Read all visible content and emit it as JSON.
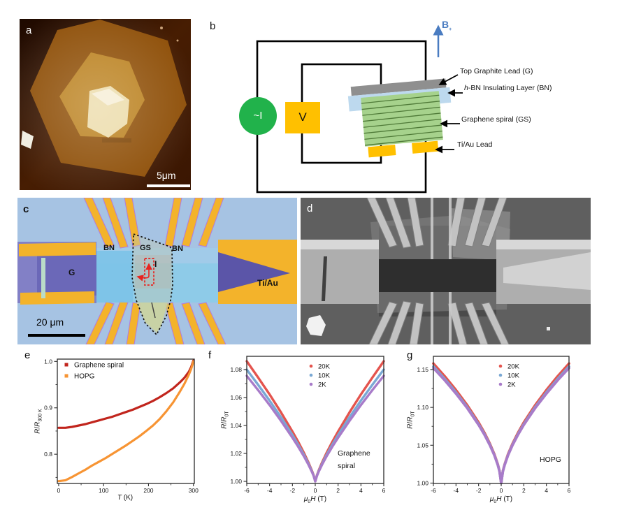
{
  "figure": {
    "panels": {
      "a": {
        "label": "a",
        "scalebar_text": "5μm",
        "colors": {
          "background": "#3c1500",
          "flake_outer": "#8f5009",
          "flake_mid": "#bc8322",
          "flake_core": "#ecdcab",
          "flake_core_highlight": "#f6eed6",
          "speck": "#f0ede0",
          "scalebar": "#ffffff"
        }
      },
      "b": {
        "label": "b",
        "current_source_label": "~I",
        "voltmeter_label": "V",
        "field_label_main": "B",
        "field_label_sub": "+",
        "ann_top_graphite": "Top Graphite Lead (G)",
        "ann_hbn_prefix": "h",
        "ann_hbn_rest": "-BN Insulating Layer (BN)",
        "ann_spiral": "Graphene spiral (GS)",
        "ann_tiau": "Ti/Au Lead",
        "colors": {
          "source_green": "#21b24b",
          "meter_gold": "#ffc000",
          "graphite_gray": "#8f8f8f",
          "hbn_blue": "#bdd9ee",
          "spiral_green": "#a6d28c",
          "spiral_line": "#4f7a38",
          "tiau_gold": "#ffc000",
          "wire_black": "#000000",
          "field_blue": "#4a7cc1"
        }
      },
      "c": {
        "label": "c",
        "scalebar_text": "20 μm",
        "bn_left": "BN",
        "gs": "GS",
        "bn_right": "BN",
        "g": "G",
        "current": "I",
        "tiau": "Ti/Au",
        "colors": {
          "background": "#a6c3e3",
          "bn_strip": "#8ecbe8",
          "bn_strip_top": "#a5cbe9",
          "gold": "#f3b32b",
          "graphite_purple": "#8280c6",
          "graphite_dark": "#6b68b8",
          "wedge_purple": "#5b55a8",
          "flake_green": "#cdd49e",
          "marker_red": "#e8231f",
          "scalebar": "#000000"
        }
      },
      "d": {
        "label": "d",
        "colors": {
          "background": "#5f5f5f",
          "pad": "#aeaeae",
          "pad_highlight": "#d8d8d8",
          "dark_band": "#2e2e2e",
          "finger": "#c2c2c2",
          "patch": "#8a8a8a",
          "speck": "#f2f2f2"
        }
      }
    }
  },
  "chart_data": [
    {
      "id": "chart-e",
      "type": "scatter",
      "panel_label": "e",
      "xlabel": {
        "main": "T",
        "unit": " (K)"
      },
      "ylabel": {
        "num": "R",
        "slash": "/",
        "den": "R",
        "sub": "300 K"
      },
      "xlim": [
        -3,
        302
      ],
      "ylim": [
        0.737,
        1.005
      ],
      "xticks": {
        "values": [
          0,
          100,
          200,
          300
        ],
        "labels": [
          "0",
          "100",
          "200",
          "300"
        ]
      },
      "yticks": {
        "values": [
          0.8,
          0.9,
          1.0
        ],
        "labels": [
          "0.8",
          "0.9",
          "1.0"
        ]
      },
      "xminor": [
        50,
        150,
        250
      ],
      "yminor": [
        0.75,
        0.85,
        0.95
      ],
      "grid": false,
      "legend": {
        "position": "top-left",
        "items": [
          {
            "label": "Graphene spiral",
            "color": "#c1251d",
            "marker": "square"
          },
          {
            "label": "HOPG",
            "color": "#f79433",
            "marker": "square"
          }
        ]
      },
      "series": [
        {
          "name": "Graphene spiral",
          "color": "#c1251d",
          "x": [
            0,
            15,
            30,
            45,
            60,
            75,
            90,
            105,
            120,
            135,
            150,
            165,
            180,
            195,
            210,
            225,
            240,
            255,
            270,
            280,
            290,
            295,
            300
          ],
          "y": [
            0.857,
            0.857,
            0.859,
            0.862,
            0.865,
            0.869,
            0.873,
            0.877,
            0.881,
            0.886,
            0.891,
            0.896,
            0.902,
            0.908,
            0.915,
            0.923,
            0.932,
            0.942,
            0.955,
            0.965,
            0.978,
            0.988,
            1.002
          ]
        },
        {
          "name": "HOPG",
          "color": "#f79433",
          "x": [
            0,
            15,
            30,
            45,
            60,
            75,
            90,
            105,
            120,
            135,
            150,
            165,
            180,
            195,
            210,
            225,
            240,
            255,
            270,
            280,
            290,
            295,
            300
          ],
          "y": [
            0.742,
            0.744,
            0.751,
            0.759,
            0.767,
            0.776,
            0.784,
            0.792,
            0.801,
            0.81,
            0.819,
            0.829,
            0.839,
            0.85,
            0.862,
            0.876,
            0.893,
            0.912,
            0.935,
            0.952,
            0.972,
            0.984,
            1.0
          ]
        }
      ]
    },
    {
      "id": "chart-f",
      "type": "scatter",
      "panel_label": "f",
      "xlabel": {
        "mu": "μ",
        "sub": "0",
        "main": "H",
        "unit": " (T)"
      },
      "ylabel": {
        "num": "R",
        "slash": "/",
        "den": "R",
        "sub": "0T"
      },
      "xlim": [
        -6,
        6
      ],
      "ylim": [
        0.9985,
        1.0895
      ],
      "xticks": {
        "values": [
          -6,
          -4,
          -2,
          0,
          2,
          4,
          6
        ],
        "labels": [
          "-6",
          "-4",
          "-2",
          "0",
          "2",
          "4",
          "6"
        ]
      },
      "yticks": {
        "values": [
          1.0,
          1.02,
          1.04,
          1.06,
          1.08
        ],
        "labels": [
          "1.00",
          "1.02",
          "1.04",
          "1.06",
          "1.08"
        ]
      },
      "xminor": [
        -5,
        -3,
        -1,
        1,
        3,
        5
      ],
      "yminor": [
        1.01,
        1.03,
        1.05,
        1.07
      ],
      "grid": false,
      "annotation": {
        "lines": [
          "Graphene",
          "spiral"
        ]
      },
      "legend": {
        "position": "top-center",
        "items": [
          {
            "label": "20K",
            "color": "#e4544e",
            "marker": "dot"
          },
          {
            "label": "10K",
            "color": "#7aa8d4",
            "marker": "dot"
          },
          {
            "label": "2K",
            "color": "#a87bc9",
            "marker": "dot"
          }
        ]
      },
      "series": [
        {
          "name": "20K",
          "color": "#e4544e",
          "x": [
            -6,
            -5,
            -4,
            -3,
            -2,
            -1.5,
            -1,
            -0.6,
            -0.3,
            -0.15,
            0,
            0.15,
            0.3,
            0.6,
            1,
            1.5,
            2,
            3,
            4,
            5,
            6
          ],
          "y": [
            1.086,
            1.0743,
            1.0622,
            1.0494,
            1.0357,
            1.0284,
            1.0205,
            1.0136,
            1.0078,
            1.0045,
            1.0,
            1.0045,
            1.0078,
            1.0136,
            1.0205,
            1.0284,
            1.0357,
            1.0494,
            1.0622,
            1.0743,
            1.086
          ]
        },
        {
          "name": "10K",
          "color": "#7aa8d4",
          "x": [
            -6,
            -5,
            -4,
            -3,
            -2,
            -1.5,
            -1,
            -0.6,
            -0.3,
            -0.15,
            0,
            0.15,
            0.3,
            0.6,
            1,
            1.5,
            2,
            3,
            4,
            5,
            6
          ],
          "y": [
            1.08,
            1.0691,
            1.0578,
            1.0459,
            1.0332,
            1.0264,
            1.0191,
            1.0127,
            1.0073,
            1.0042,
            1.0,
            1.0042,
            1.0073,
            1.0127,
            1.0191,
            1.0264,
            1.0332,
            1.0459,
            1.0578,
            1.0691,
            1.08
          ]
        },
        {
          "name": "2K",
          "color": "#a87bc9",
          "x": [
            -6,
            -5,
            -4,
            -3,
            -2,
            -1.5,
            -1,
            -0.6,
            -0.3,
            -0.15,
            0,
            0.15,
            0.3,
            0.6,
            1,
            1.5,
            2,
            3,
            4,
            5,
            6
          ],
          "y": [
            1.0755,
            1.0653,
            1.0546,
            1.0433,
            1.0313,
            1.0249,
            1.018,
            1.012,
            1.0069,
            1.004,
            1.0,
            1.004,
            1.0069,
            1.012,
            1.018,
            1.0249,
            1.0313,
            1.0433,
            1.0546,
            1.0653,
            1.0755
          ]
        }
      ]
    },
    {
      "id": "chart-g",
      "type": "scatter",
      "panel_label": "g",
      "xlabel": {
        "mu": "μ",
        "sub": "0",
        "main": "H",
        "unit": " (T)"
      },
      "ylabel": {
        "num": "R",
        "slash": "/",
        "den": "R",
        "sub": "0T"
      },
      "xlim": [
        -6,
        6
      ],
      "ylim": [
        0.9995,
        1.1675
      ],
      "xticks": {
        "values": [
          -6,
          -4,
          -2,
          0,
          2,
          4,
          6
        ],
        "labels": [
          "-6",
          "-4",
          "-2",
          "0",
          "2",
          "4",
          "6"
        ]
      },
      "yticks": {
        "values": [
          1.0,
          1.05,
          1.1,
          1.15
        ],
        "labels": [
          "1.00",
          "1.05",
          "1.10",
          "1.15"
        ]
      },
      "xminor": [
        -5,
        -3,
        -1,
        1,
        3,
        5
      ],
      "yminor": [
        1.025,
        1.075,
        1.125
      ],
      "grid": false,
      "annotation": {
        "lines": [
          "HOPG"
        ]
      },
      "legend": {
        "position": "top-center",
        "items": [
          {
            "label": "20K",
            "color": "#e4544e",
            "marker": "dot"
          },
          {
            "label": "10K",
            "color": "#7aa8d4",
            "marker": "dot"
          },
          {
            "label": "2K",
            "color": "#a87bc9",
            "marker": "dot"
          }
        ]
      },
      "series": [
        {
          "name": "20K",
          "color": "#e4544e",
          "x": [
            -6,
            -5,
            -4,
            -3,
            -2,
            -1.5,
            -1,
            -0.6,
            -0.3,
            -0.15,
            0,
            0.15,
            0.3,
            0.6,
            1,
            1.5,
            2,
            3,
            4,
            5,
            6
          ],
          "y": [
            1.158,
            1.1411,
            1.1229,
            1.1028,
            1.08,
            1.0669,
            1.052,
            1.0379,
            1.0247,
            1.016,
            1.0,
            1.016,
            1.0247,
            1.0379,
            1.052,
            1.0669,
            1.08,
            1.1028,
            1.1229,
            1.1411,
            1.158
          ]
        },
        {
          "name": "10K",
          "color": "#7aa8d4",
          "x": [
            -6,
            -5,
            -4,
            -3,
            -2,
            -1.5,
            -1,
            -0.6,
            -0.3,
            -0.15,
            0,
            0.15,
            0.3,
            0.6,
            1,
            1.5,
            2,
            3,
            4,
            5,
            6
          ],
          "y": [
            1.154,
            1.1376,
            1.1198,
            1.1002,
            1.0779,
            1.0652,
            1.0507,
            1.0369,
            1.024,
            1.0156,
            1.0,
            1.0156,
            1.024,
            1.0369,
            1.0507,
            1.0652,
            1.0779,
            1.1002,
            1.1198,
            1.1376,
            1.154
          ]
        },
        {
          "name": "2K",
          "color": "#a87bc9",
          "x": [
            -6,
            -5,
            -4,
            -3,
            -2,
            -1.5,
            -1,
            -0.6,
            -0.3,
            -0.15,
            0,
            0.15,
            0.3,
            0.6,
            1,
            1.5,
            2,
            3,
            4,
            5,
            6
          ],
          "y": [
            1.152,
            1.1358,
            1.1182,
            1.0989,
            1.0769,
            1.0643,
            1.05,
            1.0365,
            1.0237,
            1.0154,
            1.0,
            1.0154,
            1.0237,
            1.0365,
            1.05,
            1.0643,
            1.0769,
            1.0989,
            1.1182,
            1.1358,
            1.152
          ]
        }
      ]
    }
  ]
}
